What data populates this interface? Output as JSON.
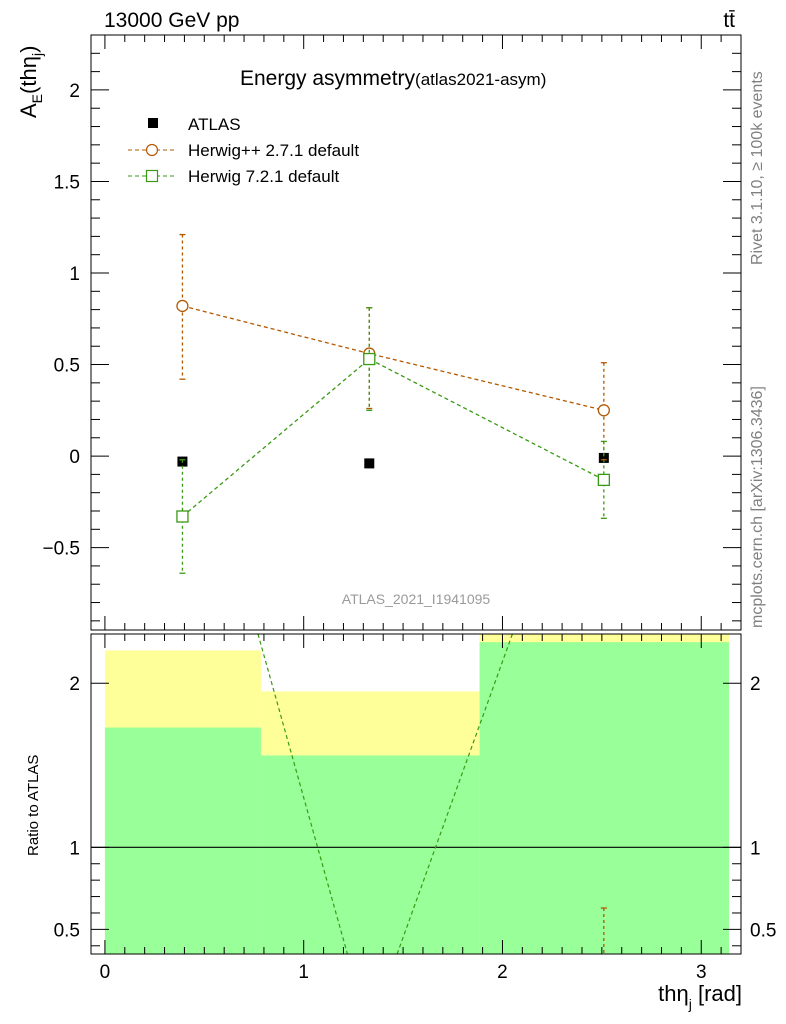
{
  "header": {
    "energy_label": "13000 GeV pp",
    "process_label": "tt̄",
    "side_rivet": "Rivet 3.1.10, ≥ 100k events",
    "side_mcplots": "mcplots.cern.ch [arXiv:1306.3436]"
  },
  "chart_data": [
    {
      "type": "scatter",
      "title_main": "Energy asymmetry",
      "title_sub": "(atlas2021-asym)",
      "ylabel_main": "A",
      "ylabel_sub1": "E",
      "ylabel_paren": "(th",
      "ylabel_eta": "η",
      "ylabel_sub2": "j",
      "ylabel_close": ")",
      "watermark": "ATLAS_2021_I1941095",
      "xlim": [
        -0.07,
        3.2
      ],
      "ylim": [
        -0.95,
        2.3
      ],
      "yticks": [
        2,
        1.5,
        1,
        0.5,
        0,
        -0.5
      ],
      "ytick_labels": [
        "2",
        "1.5",
        "1",
        "0.5",
        "0",
        "−0.5"
      ],
      "series": [
        {
          "name": "ATLAS",
          "color": "#000000",
          "marker": "filled-square",
          "line": false,
          "x": [
            0.39,
            1.33,
            2.51
          ],
          "y": [
            -0.03,
            -0.04,
            -0.01
          ],
          "yerr_lo": [
            0.0,
            0.0,
            0.0
          ],
          "yerr_hi": [
            0.0,
            0.0,
            0.0
          ]
        },
        {
          "name": "Herwig++ 2.7.1 default",
          "color": "#b35900",
          "marker": "open-circle",
          "line": true,
          "x": [
            0.39,
            1.33,
            2.51
          ],
          "y": [
            0.82,
            0.56,
            0.25
          ],
          "yerr_lo": [
            0.4,
            0.3,
            0.27
          ],
          "yerr_hi": [
            0.39,
            0.25,
            0.26
          ]
        },
        {
          "name": "Herwig 7.2.1 default",
          "color": "#3a9a14",
          "marker": "open-square",
          "line": true,
          "x": [
            0.39,
            1.33,
            2.51
          ],
          "y": [
            -0.33,
            0.53,
            -0.13
          ],
          "yerr_lo": [
            0.31,
            0.28,
            0.21
          ],
          "yerr_hi": [
            0.31,
            0.28,
            0.21
          ]
        }
      ]
    },
    {
      "type": "area",
      "ylabel": "Ratio to ATLAS",
      "xlabel_main": "th",
      "xlabel_eta": "η",
      "xlabel_sub": "j",
      "xlabel_unit": " [rad]",
      "xlim": [
        -0.07,
        3.2
      ],
      "ylim": [
        0.35,
        2.3
      ],
      "xticks": [
        0,
        1,
        2,
        3
      ],
      "xtick_labels": [
        "0",
        "1",
        "2",
        "3"
      ],
      "yticks": [
        2,
        1,
        0.5
      ],
      "ytick_labels": [
        "2",
        "1",
        "0.5"
      ],
      "reference": 1,
      "bands_yellow": [
        {
          "x0": 0.0,
          "x1": 0.785,
          "lo": 0.35,
          "hi": 2.2
        },
        {
          "x0": 0.785,
          "x1": 1.885,
          "lo": 0.55,
          "hi": 1.95
        },
        {
          "x0": 1.885,
          "x1": 3.14,
          "lo": 0.35,
          "hi": 2.3
        }
      ],
      "bands_green": [
        {
          "x0": 0.0,
          "x1": 0.785,
          "lo": 0.35,
          "hi": 1.73
        },
        {
          "x0": 0.785,
          "x1": 1.885,
          "lo": 0.35,
          "hi": 1.56
        },
        {
          "x0": 1.885,
          "x1": 3.14,
          "lo": 0.35,
          "hi": 2.25
        }
      ],
      "series": [
        {
          "name": "Herwig++ 2.7.1 default",
          "color": "#b35900",
          "x": [
            2.51
          ],
          "y": [
            0.35
          ],
          "err_top": [
            0.63
          ]
        },
        {
          "name": "Herwig 7.2.1 default",
          "color": "#3a9a14",
          "segments": [
            {
              "x0": 0.77,
              "y0": 2.3,
              "x1": 1.22,
              "y1": 0.35
            },
            {
              "x0": 1.47,
              "y0": 0.35,
              "x1": 2.05,
              "y1": 2.3
            }
          ]
        }
      ]
    }
  ]
}
